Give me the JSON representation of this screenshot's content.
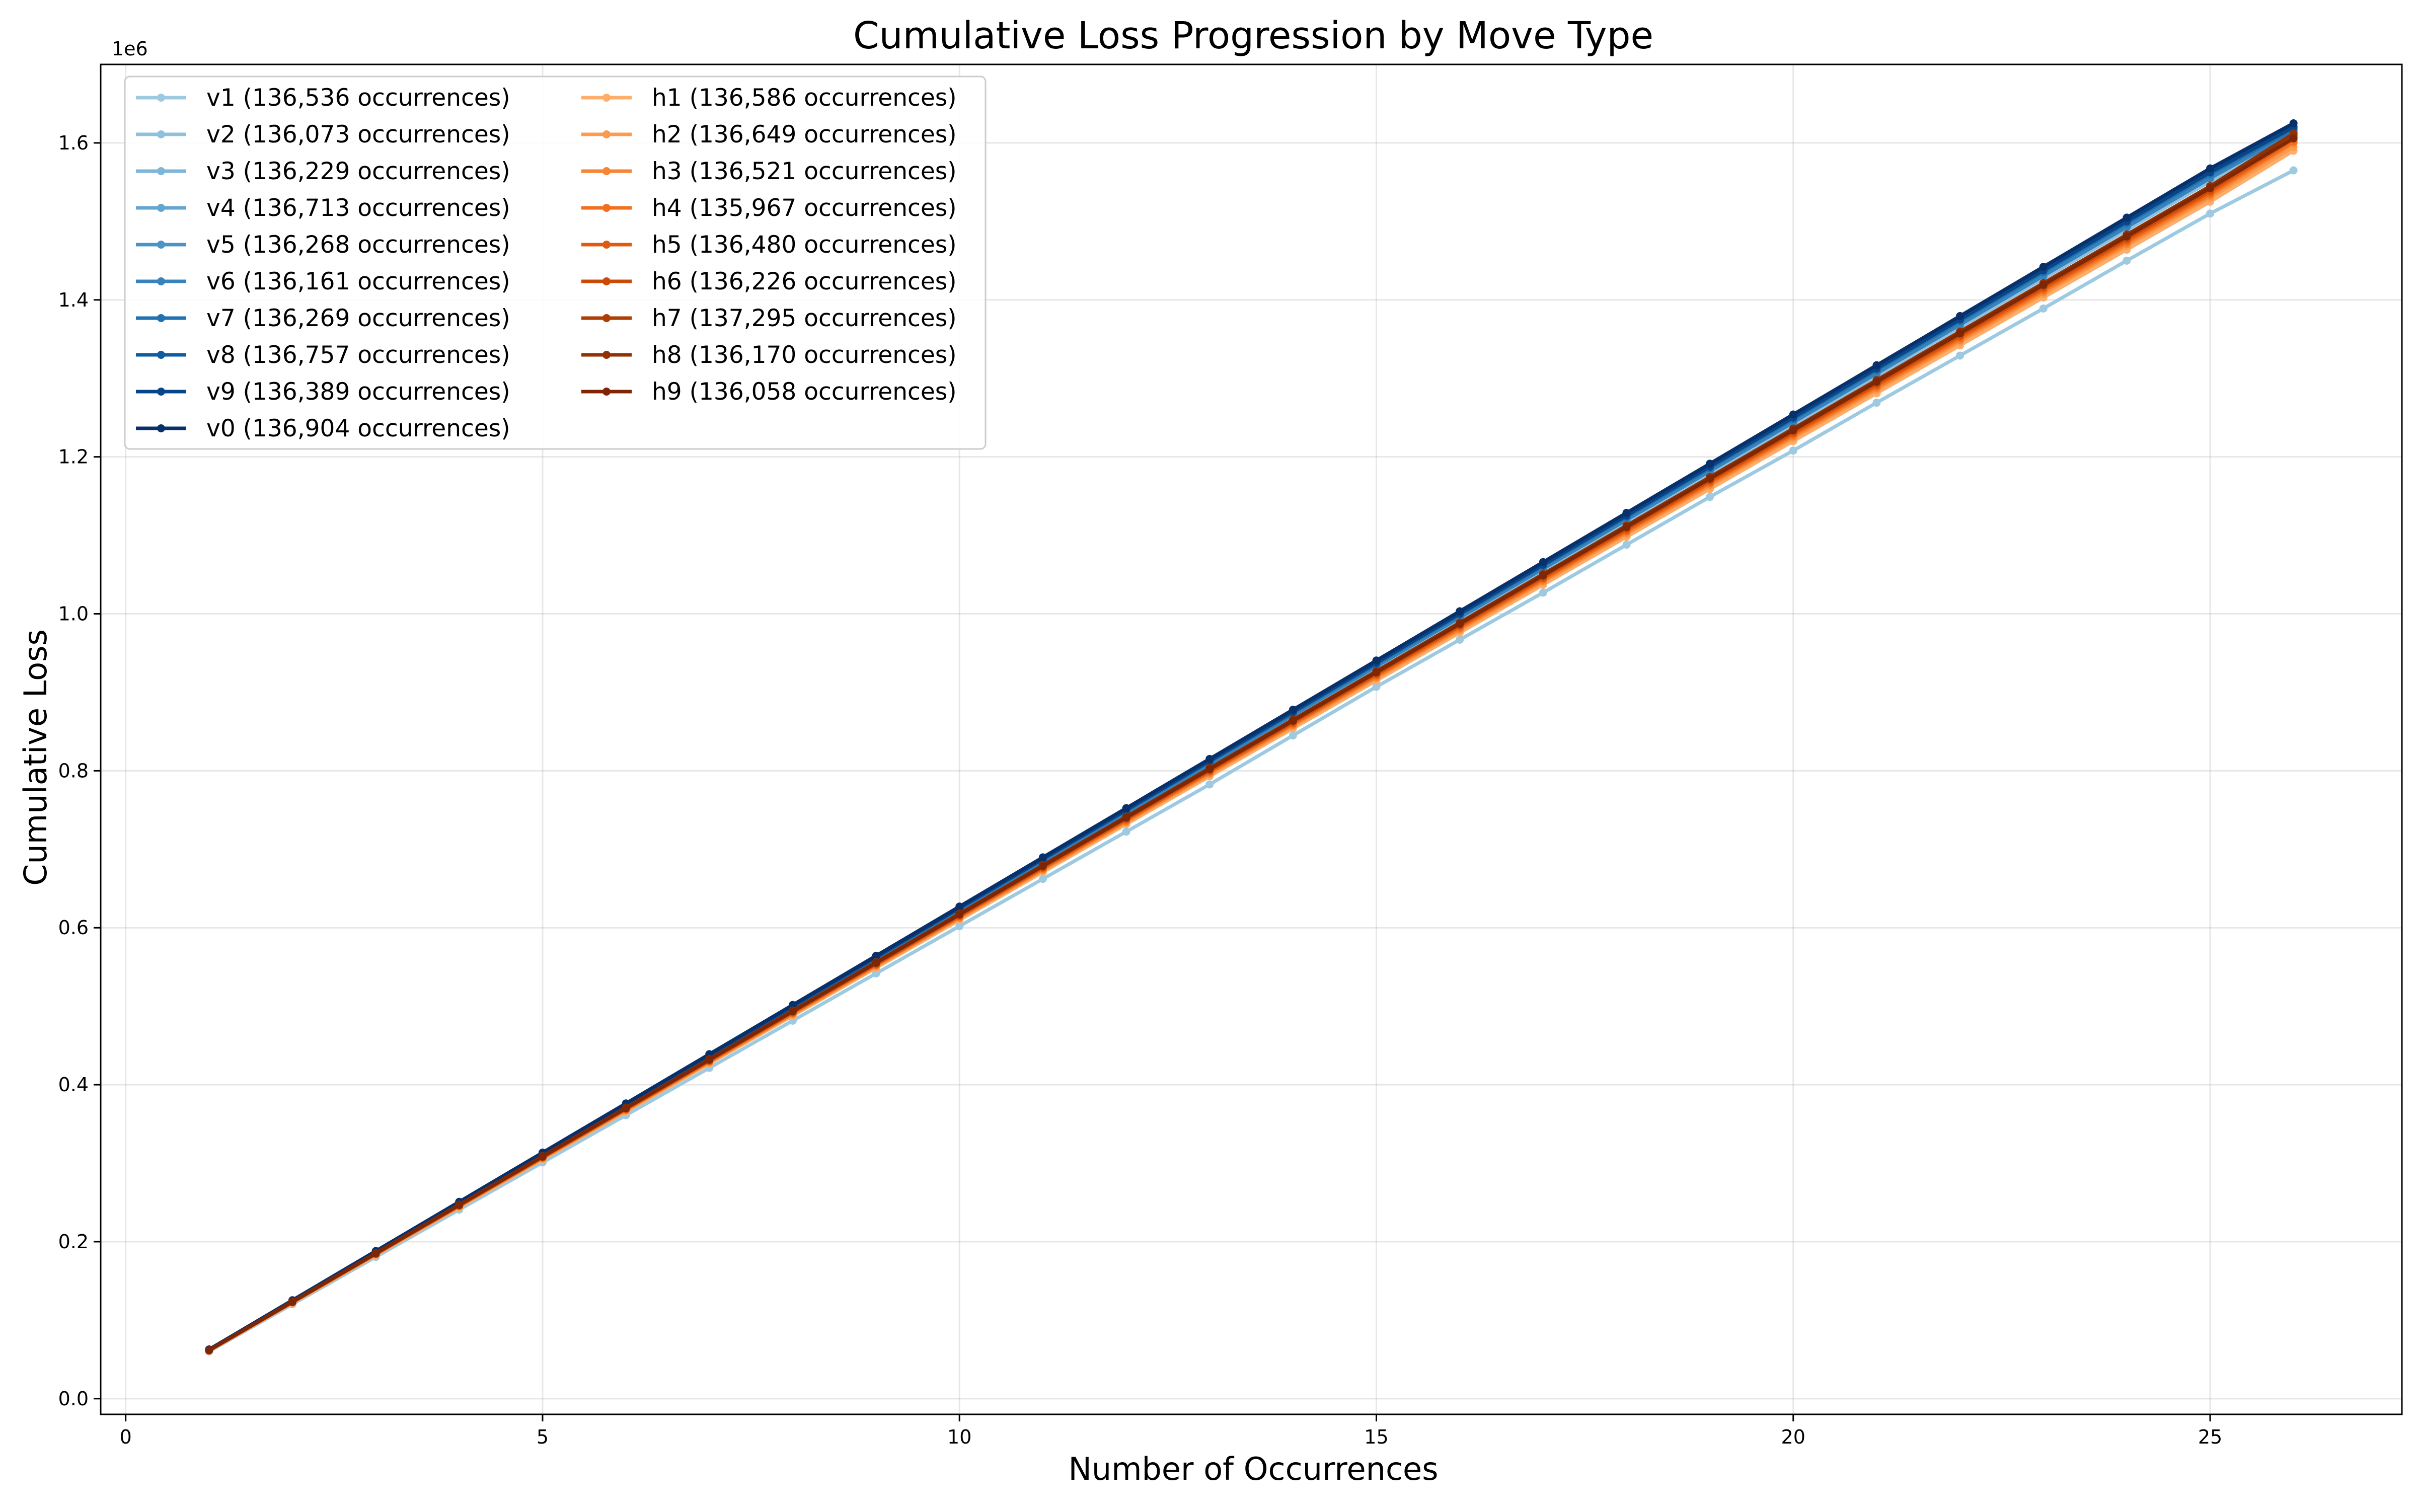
{
  "chart_data": {
    "type": "line",
    "title": "Cumulative Loss Progression by Move Type",
    "xlabel": "Number of Occurrences",
    "ylabel": "Cumulative Loss",
    "y_offset_label": "1e6",
    "xlim": [
      -0.3,
      27.3
    ],
    "ylim": [
      -0.02,
      1.7
    ],
    "y_scale_note": "values in units of 1e6",
    "x_ticks": [
      0,
      5,
      10,
      15,
      20,
      25
    ],
    "x_tick_labels": [
      "0",
      "5",
      "10",
      "15",
      "20",
      "25"
    ],
    "y_ticks": [
      0.0,
      0.2,
      0.4,
      0.6,
      0.8,
      1.0,
      1.2,
      1.4,
      1.6
    ],
    "y_tick_labels": [
      "0.0",
      "0.2",
      "0.4",
      "0.6",
      "0.8",
      "1.0",
      "1.2",
      "1.4",
      "1.6"
    ],
    "grid": true,
    "legend_position": "top-left",
    "legend_columns": 2,
    "x": [
      1,
      2,
      3,
      4,
      5,
      6,
      7,
      8,
      9,
      10,
      11,
      12,
      13,
      14,
      15,
      16,
      17,
      18,
      19,
      20,
      21,
      22,
      23,
      24,
      25,
      26
    ],
    "series": [
      {
        "name": "v1 (136,536 occurrences)",
        "color": "#9ecae1",
        "values": [
          0.0602,
          0.1204,
          0.1806,
          0.2408,
          0.301,
          0.3612,
          0.4214,
          0.4816,
          0.5418,
          0.602,
          0.6622,
          0.7224,
          0.7826,
          0.845,
          0.907,
          0.967,
          1.027,
          1.088,
          1.149,
          1.208,
          1.269,
          1.329,
          1.389,
          1.45,
          1.51,
          1.565
        ]
      },
      {
        "name": "v2 (136,073 occurrences)",
        "color": "#8fc1de",
        "values": [
          0.062,
          0.124,
          0.186,
          0.248,
          0.31,
          0.372,
          0.434,
          0.496,
          0.558,
          0.62,
          0.682,
          0.745,
          0.807,
          0.869,
          0.931,
          0.993,
          1.055,
          1.117,
          1.179,
          1.241,
          1.303,
          1.365,
          1.427,
          1.489,
          1.551,
          1.61
        ]
      },
      {
        "name": "v3 (136,229 occurrences)",
        "color": "#7db6d9",
        "values": [
          0.0622,
          0.1244,
          0.1866,
          0.2488,
          0.311,
          0.3732,
          0.4354,
          0.4976,
          0.5598,
          0.622,
          0.6842,
          0.7464,
          0.8086,
          0.8708,
          0.933,
          0.9952,
          1.0574,
          1.1196,
          1.1818,
          1.244,
          1.3062,
          1.3684,
          1.4306,
          1.4928,
          1.555,
          1.613
        ]
      },
      {
        "name": "v4 (136,713 occurrences)",
        "color": "#65a6d1",
        "values": [
          0.0625,
          0.125,
          0.1875,
          0.25,
          0.3125,
          0.375,
          0.4375,
          0.5,
          0.5625,
          0.625,
          0.6875,
          0.75,
          0.8125,
          0.875,
          0.9375,
          1.0,
          1.06,
          1.123,
          1.185,
          1.247,
          1.31,
          1.372,
          1.434,
          1.497,
          1.559,
          1.618
        ]
      },
      {
        "name": "v5 (136,268 occurrences)",
        "color": "#4d94c6",
        "values": [
          0.0623,
          0.1246,
          0.1869,
          0.2492,
          0.3115,
          0.3738,
          0.4361,
          0.4984,
          0.5607,
          0.623,
          0.6853,
          0.7476,
          0.8099,
          0.8722,
          0.9345,
          0.9968,
          1.0591,
          1.1214,
          1.1837,
          1.246,
          1.3083,
          1.3706,
          1.4329,
          1.4952,
          1.5575,
          1.615
        ]
      },
      {
        "name": "v6 (136,161 occurrences)",
        "color": "#3983bc",
        "values": [
          0.0622,
          0.1244,
          0.1866,
          0.2488,
          0.311,
          0.3732,
          0.4354,
          0.4976,
          0.5598,
          0.622,
          0.6842,
          0.7464,
          0.8086,
          0.8708,
          0.933,
          0.9952,
          1.0574,
          1.1196,
          1.1818,
          1.244,
          1.3062,
          1.3684,
          1.4306,
          1.4928,
          1.555,
          1.614
        ]
      },
      {
        "name": "v7 (136,269 occurrences)",
        "color": "#2271b0",
        "values": [
          0.0624,
          0.1248,
          0.1872,
          0.2496,
          0.312,
          0.3744,
          0.4368,
          0.4992,
          0.5616,
          0.624,
          0.6864,
          0.7488,
          0.8112,
          0.8736,
          0.936,
          0.9984,
          1.0608,
          1.1232,
          1.1856,
          1.248,
          1.3104,
          1.3728,
          1.4352,
          1.4976,
          1.56,
          1.617
        ]
      },
      {
        "name": "v8 (136,757 occurrences)",
        "color": "#105ca1",
        "values": [
          0.0626,
          0.1252,
          0.1878,
          0.2504,
          0.313,
          0.3756,
          0.4382,
          0.5008,
          0.5634,
          0.626,
          0.6886,
          0.7512,
          0.8138,
          0.8764,
          0.939,
          1.0016,
          1.0642,
          1.1268,
          1.1894,
          1.252,
          1.3146,
          1.3772,
          1.4398,
          1.5024,
          1.565,
          1.621
        ]
      },
      {
        "name": "v9 (136,389 occurrences)",
        "color": "#08468a",
        "values": [
          0.0625,
          0.125,
          0.1875,
          0.25,
          0.3125,
          0.375,
          0.4375,
          0.5,
          0.5625,
          0.625,
          0.6875,
          0.75,
          0.8125,
          0.875,
          0.9375,
          1.0,
          1.0625,
          1.125,
          1.1875,
          1.25,
          1.3125,
          1.375,
          1.4375,
          1.5,
          1.5625,
          1.62
        ]
      },
      {
        "name": "v0 (136,904 occurrences)",
        "color": "#08306b",
        "values": [
          0.0627,
          0.1254,
          0.1881,
          0.2508,
          0.3135,
          0.3762,
          0.4389,
          0.5016,
          0.5643,
          0.627,
          0.6897,
          0.7524,
          0.8151,
          0.8778,
          0.9405,
          1.0032,
          1.0659,
          1.1286,
          1.1913,
          1.254,
          1.3167,
          1.3794,
          1.4421,
          1.5048,
          1.5675,
          1.625
        ]
      },
      {
        "name": "h1 (136,586 occurrences)",
        "color": "#fdae6b",
        "values": [
          0.061,
          0.122,
          0.183,
          0.244,
          0.305,
          0.366,
          0.427,
          0.488,
          0.549,
          0.61,
          0.671,
          0.732,
          0.793,
          0.854,
          0.915,
          0.976,
          1.037,
          1.098,
          1.159,
          1.22,
          1.281,
          1.342,
          1.403,
          1.464,
          1.525,
          1.59
        ]
      },
      {
        "name": "h2 (136,649 occurrences)",
        "color": "#fd9a4e",
        "values": [
          0.0612,
          0.1224,
          0.1836,
          0.2448,
          0.306,
          0.3672,
          0.4284,
          0.4896,
          0.5508,
          0.612,
          0.6732,
          0.7344,
          0.7956,
          0.8568,
          0.918,
          0.9792,
          1.0404,
          1.1016,
          1.1628,
          1.224,
          1.2852,
          1.3464,
          1.4076,
          1.4688,
          1.53,
          1.595
        ]
      },
      {
        "name": "h3 (136,521 occurrences)",
        "color": "#f88533",
        "values": [
          0.0613,
          0.1226,
          0.1839,
          0.2452,
          0.3065,
          0.3678,
          0.4291,
          0.4904,
          0.5517,
          0.613,
          0.6743,
          0.7356,
          0.7969,
          0.8582,
          0.9195,
          0.9808,
          1.0421,
          1.1034,
          1.1647,
          1.226,
          1.2873,
          1.3486,
          1.4099,
          1.4712,
          1.5325,
          1.6
        ]
      },
      {
        "name": "h4 (135,967 occurrences)",
        "color": "#f0701f",
        "values": [
          0.0614,
          0.1228,
          0.1842,
          0.2456,
          0.307,
          0.3684,
          0.4298,
          0.4912,
          0.5526,
          0.614,
          0.6754,
          0.7368,
          0.7982,
          0.8596,
          0.921,
          0.9824,
          1.0438,
          1.1052,
          1.1666,
          1.228,
          1.2894,
          1.3508,
          1.4122,
          1.4736,
          1.535,
          1.602
        ]
      },
      {
        "name": "h5 (136,480 occurrences)",
        "color": "#e05a10",
        "values": [
          0.0615,
          0.123,
          0.1845,
          0.246,
          0.3075,
          0.369,
          0.4305,
          0.492,
          0.5535,
          0.615,
          0.6765,
          0.738,
          0.7995,
          0.861,
          0.9225,
          0.984,
          1.0455,
          1.107,
          1.1685,
          1.23,
          1.2915,
          1.353,
          1.4145,
          1.476,
          1.5375,
          1.605
        ]
      },
      {
        "name": "h6 (136,226 occurrences)",
        "color": "#cb4a07",
        "values": [
          0.0616,
          0.1232,
          0.1848,
          0.2464,
          0.308,
          0.3696,
          0.4312,
          0.4928,
          0.5544,
          0.616,
          0.6776,
          0.7392,
          0.8008,
          0.8624,
          0.924,
          0.9856,
          1.0472,
          1.1088,
          1.1704,
          1.232,
          1.2936,
          1.3552,
          1.4168,
          1.4784,
          1.54,
          1.608
        ]
      },
      {
        "name": "h7 (137,295 occurrences)",
        "color": "#b03d03",
        "values": [
          0.0617,
          0.1234,
          0.1851,
          0.2468,
          0.3085,
          0.3702,
          0.4319,
          0.4936,
          0.5553,
          0.617,
          0.6787,
          0.7404,
          0.8021,
          0.8638,
          0.9255,
          0.9872,
          1.0489,
          1.1106,
          1.1723,
          1.234,
          1.2957,
          1.3574,
          1.4191,
          1.4808,
          1.5425,
          1.61
        ]
      },
      {
        "name": "h8 (136,170 occurrences)",
        "color": "#923204",
        "values": [
          0.0618,
          0.1236,
          0.1854,
          0.2472,
          0.309,
          0.3708,
          0.4326,
          0.4944,
          0.5562,
          0.618,
          0.6798,
          0.7416,
          0.8034,
          0.8652,
          0.927,
          0.9888,
          1.0506,
          1.1124,
          1.1742,
          1.236,
          1.2978,
          1.3596,
          1.4214,
          1.4832,
          1.545,
          1.612
        ]
      },
      {
        "name": "h9 (136,058 occurrences)",
        "color": "#7f2704",
        "values": [
          0.0617,
          0.1234,
          0.1851,
          0.2468,
          0.3085,
          0.3702,
          0.4319,
          0.4936,
          0.5553,
          0.617,
          0.6787,
          0.7404,
          0.8021,
          0.8638,
          0.9255,
          0.9872,
          1.0489,
          1.1106,
          1.1723,
          1.234,
          1.2957,
          1.3574,
          1.4191,
          1.4808,
          1.5425,
          1.606
        ]
      }
    ]
  },
  "colors": {
    "background": "#ffffff",
    "grid": "#b0b0b0",
    "axis": "#000000",
    "legend_border": "#cccccc"
  }
}
